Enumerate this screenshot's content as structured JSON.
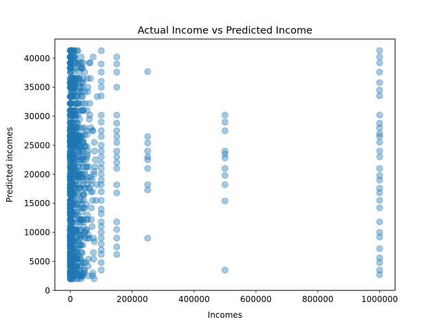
{
  "chart_data": {
    "type": "scatter",
    "title": "Actual Income vs Predicted Income",
    "xlabel": "Incomes",
    "ylabel": "Predicted incomes",
    "xlim": [
      -50000,
      1050000
    ],
    "ylim": [
      0,
      43300
    ],
    "xticks": [
      0,
      200000,
      400000,
      600000,
      800000,
      1000000
    ],
    "xtick_labels": [
      "0",
      "200000",
      "400000",
      "600000",
      "800000",
      "1000000"
    ],
    "yticks": [
      0,
      5000,
      10000,
      15000,
      20000,
      25000,
      30000,
      35000,
      40000
    ],
    "ytick_labels": [
      "0",
      "5000",
      "10000",
      "15000",
      "20000",
      "25000",
      "30000",
      "35000",
      "40000"
    ],
    "grid": false,
    "marker_color": "#1f77b4",
    "marker_alpha": 0.4,
    "series": [
      {
        "points": [
          [
            150000,
            40200
          ],
          [
            150000,
            39000
          ],
          [
            150000,
            37600
          ],
          [
            150000,
            35000
          ],
          [
            150000,
            30200
          ],
          [
            150000,
            28800
          ],
          [
            150000,
            27500
          ],
          [
            150000,
            26500
          ],
          [
            150000,
            25500
          ],
          [
            150000,
            24000
          ],
          [
            150000,
            23000
          ],
          [
            150000,
            22000
          ],
          [
            150000,
            21000
          ],
          [
            150000,
            18200
          ],
          [
            150000,
            16800
          ],
          [
            150000,
            11800
          ],
          [
            150000,
            10500
          ],
          [
            150000,
            9000
          ],
          [
            150000,
            7500
          ],
          [
            150000,
            6200
          ],
          [
            250000,
            37700
          ],
          [
            250000,
            26500
          ],
          [
            250000,
            25400
          ],
          [
            250000,
            24000
          ],
          [
            250000,
            23000
          ],
          [
            250000,
            22500
          ],
          [
            250000,
            21000
          ],
          [
            250000,
            18200
          ],
          [
            250000,
            17300
          ],
          [
            250000,
            9000
          ],
          [
            500000,
            30200
          ],
          [
            500000,
            29000
          ],
          [
            500000,
            27500
          ],
          [
            500000,
            24000
          ],
          [
            500000,
            23500
          ],
          [
            500000,
            22800
          ],
          [
            500000,
            21000
          ],
          [
            500000,
            19800
          ],
          [
            500000,
            18200
          ],
          [
            500000,
            15400
          ],
          [
            500000,
            3500
          ],
          [
            1000000,
            41300
          ],
          [
            1000000,
            40200
          ],
          [
            1000000,
            39200
          ],
          [
            1000000,
            37600
          ],
          [
            1000000,
            35800
          ],
          [
            1000000,
            34500
          ],
          [
            1000000,
            33500
          ],
          [
            1000000,
            30200
          ],
          [
            1000000,
            28800
          ],
          [
            1000000,
            28000
          ],
          [
            1000000,
            27000
          ],
          [
            1000000,
            26500
          ],
          [
            1000000,
            25500
          ],
          [
            1000000,
            24000
          ],
          [
            1000000,
            23000
          ],
          [
            1000000,
            21000
          ],
          [
            1000000,
            19800
          ],
          [
            1000000,
            19000
          ],
          [
            1000000,
            17600
          ],
          [
            1000000,
            16800
          ],
          [
            1000000,
            15500
          ],
          [
            1000000,
            14200
          ],
          [
            1000000,
            11800
          ],
          [
            1000000,
            10000
          ],
          [
            1000000,
            9200
          ],
          [
            1000000,
            7200
          ],
          [
            1000000,
            5600
          ],
          [
            1000000,
            4800
          ],
          [
            1000000,
            3500
          ],
          [
            1000000,
            2700
          ],
          [
            100000,
            41300
          ],
          [
            100000,
            39000
          ],
          [
            100000,
            37600
          ],
          [
            100000,
            36000
          ],
          [
            100000,
            35000
          ],
          [
            100000,
            33500
          ],
          [
            100000,
            30200
          ],
          [
            100000,
            29000
          ],
          [
            100000,
            27500
          ],
          [
            100000,
            26500
          ],
          [
            100000,
            25000
          ],
          [
            100000,
            24000
          ],
          [
            100000,
            23000
          ],
          [
            100000,
            21900
          ],
          [
            100000,
            21000
          ],
          [
            100000,
            20000
          ],
          [
            100000,
            19000
          ],
          [
            100000,
            18200
          ],
          [
            100000,
            17000
          ],
          [
            100000,
            15500
          ],
          [
            100000,
            14000
          ],
          [
            100000,
            13200
          ],
          [
            100000,
            11800
          ],
          [
            100000,
            11000
          ],
          [
            100000,
            10000
          ],
          [
            100000,
            9000
          ],
          [
            100000,
            8000
          ],
          [
            100000,
            7000
          ],
          [
            100000,
            6200
          ],
          [
            100000,
            4800
          ],
          [
            100000,
            3500
          ]
        ]
      }
    ]
  }
}
